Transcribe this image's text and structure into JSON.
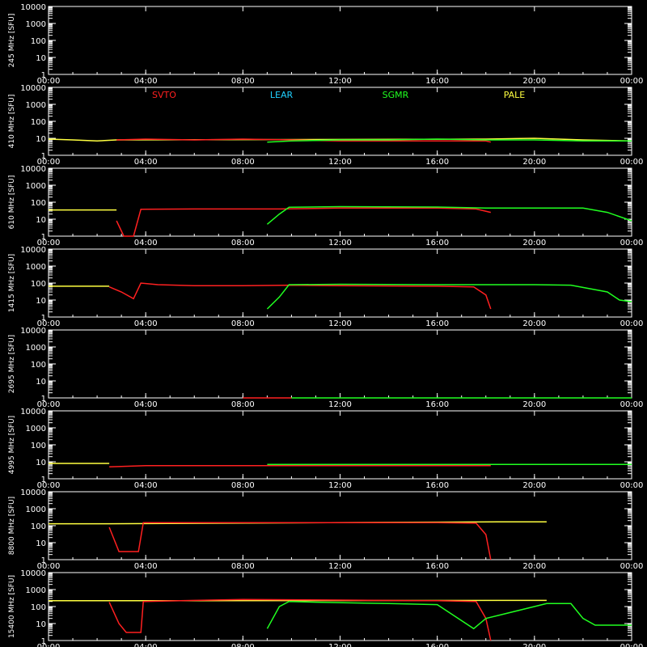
{
  "chart_data": {
    "type": "line",
    "x_ticks": [
      "00:00",
      "04:00",
      "08:00",
      "12:00",
      "16:00",
      "20:00",
      "00:00"
    ],
    "x_range_hours": [
      0,
      24
    ],
    "y_scale": "log",
    "y_range": [
      1,
      10000
    ],
    "y_ticks": [
      "10000",
      "1000",
      "100",
      "10",
      "1"
    ],
    "legend": [
      {
        "name": "SVTO",
        "color": "#ff2020"
      },
      {
        "name": "LEAR",
        "color": "#20d0ff"
      },
      {
        "name": "SGMR",
        "color": "#20ff20"
      },
      {
        "name": "PALE",
        "color": "#ffff40"
      }
    ],
    "colors": {
      "SVTO": "#ff2020",
      "LEAR": "#20d0ff",
      "SGMR": "#20ff20",
      "PALE": "#ffff40",
      "axis": "#ffffff"
    },
    "panels": [
      {
        "ylabel": "245 MHz [SFU]",
        "series": []
      },
      {
        "ylabel": "410 MHz [SFU]",
        "series": [
          {
            "name": "PALE",
            "points": [
              [
                0,
                9
              ],
              [
                1,
                8
              ],
              [
                2,
                7
              ],
              [
                2.8,
                8
              ],
              [
                18,
                9
              ],
              [
                20,
                10
              ],
              [
                22,
                8
              ],
              [
                24,
                7
              ]
            ]
          },
          {
            "name": "SVTO",
            "points": [
              [
                2.8,
                8
              ],
              [
                4,
                9
              ],
              [
                6,
                8
              ],
              [
                8,
                9
              ],
              [
                10,
                8
              ],
              [
                12,
                7
              ],
              [
                14,
                7
              ],
              [
                16,
                7
              ],
              [
                18,
                7
              ],
              [
                18.2,
                6
              ]
            ]
          },
          {
            "name": "SGMR",
            "points": [
              [
                9,
                6
              ],
              [
                10,
                7
              ],
              [
                12,
                8
              ],
              [
                14,
                8
              ],
              [
                16,
                9
              ],
              [
                18,
                8
              ],
              [
                20,
                8
              ],
              [
                22,
                7
              ],
              [
                24,
                7
              ]
            ]
          }
        ]
      },
      {
        "ylabel": "610 MHz [SFU]",
        "series": [
          {
            "name": "PALE",
            "points": [
              [
                0,
                35
              ],
              [
                2.8,
                35
              ]
            ]
          },
          {
            "name": "SVTO",
            "points": [
              [
                2.8,
                8
              ],
              [
                3.1,
                1
              ],
              [
                3.5,
                1
              ],
              [
                3.8,
                38
              ],
              [
                6,
                40
              ],
              [
                8,
                40
              ],
              [
                9.5,
                40
              ],
              [
                12,
                45
              ],
              [
                16,
                45
              ],
              [
                17.6,
                40
              ],
              [
                18.2,
                25
              ]
            ]
          },
          {
            "name": "SGMR",
            "points": [
              [
                9,
                5
              ],
              [
                9.5,
                20
              ],
              [
                9.9,
                50
              ],
              [
                12,
                55
              ],
              [
                16,
                52
              ],
              [
                18,
                45
              ],
              [
                20,
                45
              ],
              [
                22,
                45
              ],
              [
                23,
                25
              ],
              [
                24,
                8
              ]
            ]
          }
        ]
      },
      {
        "ylabel": "1415 MHz [SFU]",
        "series": [
          {
            "name": "PALE",
            "points": [
              [
                0,
                65
              ],
              [
                2.5,
                65
              ]
            ]
          },
          {
            "name": "SVTO",
            "points": [
              [
                2.5,
                60
              ],
              [
                3,
                30
              ],
              [
                3.5,
                12
              ],
              [
                3.8,
                100
              ],
              [
                4.5,
                80
              ],
              [
                6,
                70
              ],
              [
                8,
                70
              ],
              [
                10,
                75
              ],
              [
                12,
                70
              ],
              [
                16,
                65
              ],
              [
                17.5,
                60
              ],
              [
                18,
                20
              ],
              [
                18.2,
                3
              ]
            ]
          },
          {
            "name": "SGMR",
            "points": [
              [
                9,
                3
              ],
              [
                9.5,
                15
              ],
              [
                9.9,
                80
              ],
              [
                12,
                85
              ],
              [
                16,
                80
              ],
              [
                20,
                80
              ],
              [
                21.5,
                75
              ],
              [
                23,
                30
              ],
              [
                23.5,
                10
              ],
              [
                24,
                8
              ]
            ]
          }
        ]
      },
      {
        "ylabel": "2695 MHz [SFU]",
        "series": [
          {
            "name": "SVTO",
            "points": [
              [
                8,
                1
              ],
              [
                10,
                1
              ]
            ]
          },
          {
            "name": "SGMR",
            "points": [
              [
                10,
                1
              ],
              [
                24,
                1
              ]
            ]
          }
        ]
      },
      {
        "ylabel": "4995 MHz [SFU]",
        "series": [
          {
            "name": "PALE",
            "points": [
              [
                0,
                8
              ],
              [
                2.5,
                8
              ]
            ]
          },
          {
            "name": "SVTO",
            "points": [
              [
                2.5,
                5
              ],
              [
                4,
                6
              ],
              [
                6,
                6
              ],
              [
                8,
                6
              ],
              [
                9,
                6
              ],
              [
                17.5,
                6
              ],
              [
                18.2,
                6
              ]
            ]
          },
          {
            "name": "SGMR",
            "points": [
              [
                9,
                7
              ],
              [
                12,
                7
              ],
              [
                16,
                7
              ],
              [
                17.5,
                7
              ],
              [
                18.5,
                7
              ],
              [
                20,
                7
              ],
              [
                22,
                7
              ],
              [
                24,
                7
              ]
            ]
          }
        ]
      },
      {
        "ylabel": "8800 MHz [SFU]",
        "series": [
          {
            "name": "PALE",
            "points": [
              [
                0,
                130
              ],
              [
                2.5,
                130
              ],
              [
                18.5,
                170
              ],
              [
                20.5,
                170
              ]
            ]
          },
          {
            "name": "SVTO",
            "points": [
              [
                2.5,
                80
              ],
              [
                2.9,
                3
              ],
              [
                3.7,
                3
              ],
              [
                3.9,
                150
              ],
              [
                8,
                150
              ],
              [
                12,
                150
              ],
              [
                16,
                150
              ],
              [
                17.6,
                140
              ],
              [
                18,
                30
              ],
              [
                18.2,
                1
              ]
            ]
          }
        ]
      },
      {
        "ylabel": "15400 MHz [SFU]",
        "series": [
          {
            "name": "PALE",
            "points": [
              [
                0,
                220
              ],
              [
                2.5,
                220
              ],
              [
                18.5,
                230
              ],
              [
                20.5,
                230
              ]
            ]
          },
          {
            "name": "SVTO",
            "points": [
              [
                2.5,
                180
              ],
              [
                2.9,
                10
              ],
              [
                3.2,
                3
              ],
              [
                3.8,
                3
              ],
              [
                3.9,
                200
              ],
              [
                6,
                230
              ],
              [
                8,
                260
              ],
              [
                10,
                250
              ],
              [
                12,
                240
              ],
              [
                16,
                220
              ],
              [
                17.6,
                200
              ],
              [
                18,
                20
              ],
              [
                18.2,
                1
              ]
            ]
          },
          {
            "name": "SGMR",
            "points": [
              [
                9,
                5
              ],
              [
                9.5,
                100
              ],
              [
                9.9,
                200
              ],
              [
                11,
                180
              ],
              [
                13,
                160
              ],
              [
                14,
                150
              ],
              [
                16,
                130
              ],
              [
                17.5,
                5
              ],
              [
                18,
                20
              ],
              [
                20.5,
                150
              ],
              [
                21.5,
                150
              ],
              [
                22,
                20
              ],
              [
                22.5,
                8
              ],
              [
                24,
                8
              ]
            ]
          }
        ]
      }
    ]
  }
}
